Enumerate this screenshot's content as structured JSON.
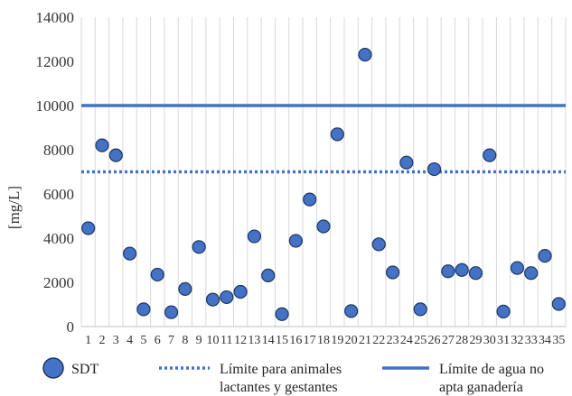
{
  "chart_data": {
    "type": "scatter",
    "xlabel": "",
    "ylabel": "[mg/L]",
    "x": [
      1,
      2,
      3,
      4,
      5,
      6,
      7,
      8,
      9,
      10,
      11,
      12,
      13,
      14,
      15,
      16,
      17,
      18,
      19,
      20,
      21,
      22,
      23,
      24,
      25,
      26,
      27,
      28,
      29,
      30,
      31,
      32,
      33,
      34,
      35
    ],
    "x_tick_labels": [
      "1",
      "2",
      "3",
      "4",
      "5",
      "6",
      "7",
      "8",
      "9",
      "10",
      "11",
      "12",
      "13",
      "14",
      "15",
      "16",
      "17",
      "18",
      "19",
      "20",
      "21",
      "22",
      "23",
      "24",
      "25",
      "26",
      "27",
      "28",
      "29",
      "30",
      "31",
      "32",
      "33",
      "34",
      "35"
    ],
    "ylim": [
      0,
      14000
    ],
    "y_ticks": [
      0,
      2000,
      4000,
      6000,
      8000,
      10000,
      12000,
      14000
    ],
    "y_tick_labels": [
      "0",
      "2000",
      "4000",
      "6000",
      "8000",
      "10000",
      "12000",
      "14000"
    ],
    "grid": "vertical",
    "legend_position": "bottom",
    "series": [
      {
        "name": "SDT",
        "kind": "markers",
        "color": "#4472C4",
        "values": [
          4450,
          8200,
          7750,
          3300,
          780,
          2350,
          650,
          1700,
          3600,
          1220,
          1330,
          1570,
          4080,
          2310,
          560,
          3880,
          5750,
          4530,
          8700,
          700,
          12300,
          3720,
          2450,
          7420,
          780,
          7120,
          2500,
          2560,
          2420,
          7750,
          680,
          2650,
          2420,
          3200,
          1020
        ]
      },
      {
        "name": "Límite para animales lactantes y gestantes",
        "kind": "dotted-line",
        "color": "#4472C4",
        "value": 7000
      },
      {
        "name": "Límite de agua no apta ganadería",
        "kind": "solid-line",
        "color": "#4472C4",
        "value": 10000
      }
    ],
    "legend": [
      {
        "lines": [
          "SDT"
        ]
      },
      {
        "lines": [
          "Límite para animales",
          "lactantes y gestantes"
        ]
      },
      {
        "lines": [
          "Límite de agua no",
          "apta ganadería"
        ]
      }
    ]
  }
}
